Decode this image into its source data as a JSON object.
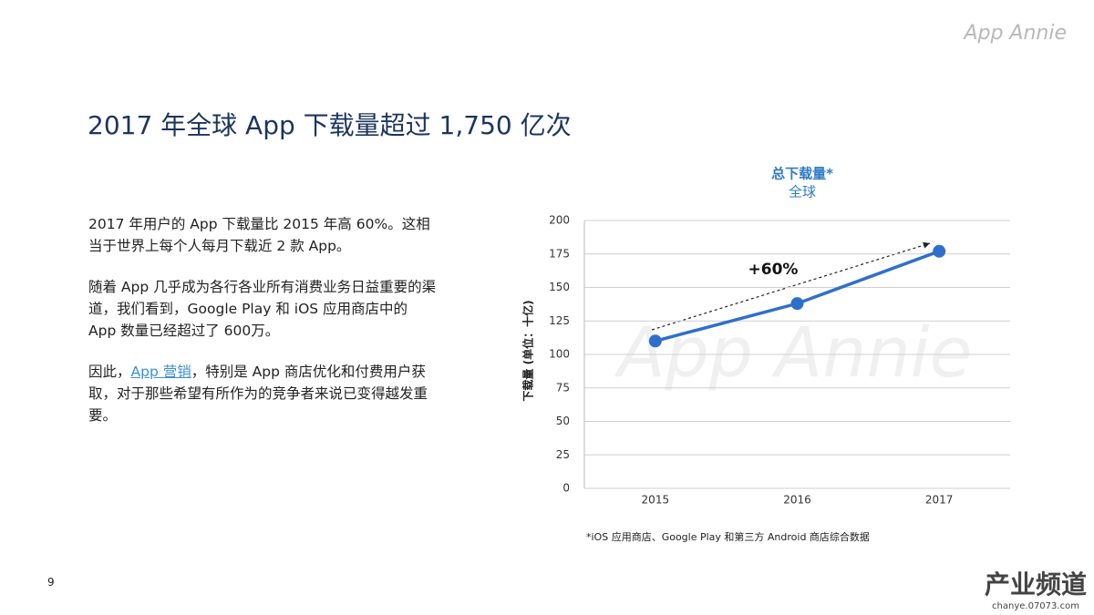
{
  "slide": {
    "logo": "App Annie",
    "title": "2017 年全球 App 下载量超过 1,750 亿次",
    "paragraphs": [
      [
        "2017 年用户的 App 下载量比 2015 年高 60%。这相当于世界上每个人每月下载近 2 款 App。"
      ],
      [
        "随着 App 几乎成为各行各业所有消费业务日益重要的渠道，我们看到，Google Play 和 iOS 应用商店中的 App 数量已经超过了 600万。"
      ],
      [
        "因此，",
        "App 营销",
        "，特别是 App 商店优化和付费用户获取，对于那些希望有所作为的竞争者来说已变得越发重要。"
      ]
    ],
    "page_number": "9",
    "corner_mark": "产业频道",
    "corner_url": "chanye.07073.com"
  },
  "chart_data": {
    "type": "line",
    "title": "总下载量*",
    "subtitle": "全球",
    "y_label": "下载量 (单位：十亿)",
    "watermark": "App Annie",
    "annotation": "+60%",
    "footnote": "*iOS 应用商店、Google Play 和第三方 Android 商店综合数据",
    "categories": [
      "2015",
      "2016",
      "2017"
    ],
    "series": [
      {
        "name": "总下载量",
        "color": "#2f6fcc",
        "values": [
          110,
          138,
          177
        ]
      }
    ],
    "ylim": [
      0,
      200
    ],
    "yticks": [
      0,
      25,
      50,
      75,
      100,
      125,
      150,
      175,
      200
    ],
    "grid": true
  }
}
